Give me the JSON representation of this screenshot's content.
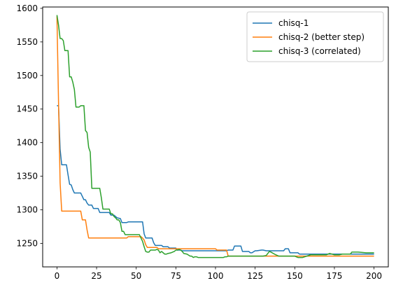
{
  "chart_data": {
    "type": "line",
    "xlim": [
      -9,
      209
    ],
    "ylim": [
      1215,
      1602
    ],
    "xticks": [
      0,
      25,
      50,
      75,
      100,
      125,
      150,
      175,
      200
    ],
    "yticks": [
      1250,
      1300,
      1350,
      1400,
      1450,
      1500,
      1550,
      1600
    ],
    "grid": false,
    "legend_position": "top-right",
    "series": [
      {
        "name": "chisq-1",
        "color": "#1f77b4",
        "x": [
          0,
          1,
          2,
          3,
          6,
          7,
          8,
          9,
          10,
          11,
          15,
          16,
          17,
          18,
          19,
          20,
          22,
          23,
          26,
          27,
          33,
          34,
          36,
          38,
          40,
          41,
          44,
          45,
          54,
          55,
          56,
          57,
          59,
          60,
          61,
          62,
          66,
          67,
          70,
          71,
          75,
          76,
          78,
          79,
          80,
          107,
          108,
          111,
          112,
          116,
          117,
          121,
          122,
          123,
          125,
          126,
          129,
          130,
          132,
          133,
          143,
          144,
          146,
          147,
          152,
          153,
          200
        ],
        "y": [
          1455,
          1455,
          1390,
          1367,
          1367,
          1352,
          1338,
          1337,
          1330,
          1325,
          1325,
          1320,
          1315,
          1315,
          1310,
          1307,
          1307,
          1302,
          1302,
          1296,
          1296,
          1292,
          1292,
          1288,
          1287,
          1281,
          1281,
          1282,
          1282,
          1264,
          1258,
          1258,
          1258,
          1258,
          1251,
          1247,
          1247,
          1245,
          1245,
          1243,
          1243,
          1240,
          1240,
          1239,
          1239,
          1239,
          1240,
          1240,
          1246,
          1246,
          1238,
          1238,
          1236,
          1236,
          1239,
          1239,
          1240,
          1240,
          1239,
          1239,
          1239,
          1242,
          1242,
          1236,
          1236,
          1234,
          1234
        ]
      },
      {
        "name": "chisq-2 (better step)",
        "color": "#ff7f0e",
        "x": [
          0,
          1,
          2,
          3,
          15,
          16,
          18,
          19,
          20,
          21,
          44,
          45,
          53,
          54,
          55,
          56,
          57,
          58,
          59,
          63,
          64,
          100,
          101,
          107,
          108,
          170,
          200
        ],
        "y": [
          1588,
          1460,
          1340,
          1298,
          1298,
          1285,
          1285,
          1270,
          1258,
          1258,
          1258,
          1260,
          1260,
          1258,
          1255,
          1248,
          1244,
          1244,
          1244,
          1244,
          1242,
          1242,
          1240,
          1240,
          1231,
          1231,
          1231
        ]
      },
      {
        "name": "chisq-3 (correlated)",
        "color": "#2ca02c",
        "x": [
          0,
          1,
          2,
          3,
          4,
          5,
          6,
          7,
          8,
          9,
          10,
          11,
          12,
          13,
          14,
          15,
          16,
          17,
          18,
          19,
          20,
          21,
          22,
          23,
          24,
          26,
          27,
          28,
          29,
          30,
          31,
          33,
          34,
          35,
          36,
          37,
          38,
          39,
          40,
          41,
          42,
          43,
          44,
          45,
          46,
          48,
          50,
          52,
          53,
          54,
          55,
          56,
          57,
          58,
          59,
          60,
          62,
          63,
          64,
          65,
          66,
          67,
          68,
          69,
          70,
          72,
          74,
          75,
          76,
          77,
          78,
          79,
          80,
          82,
          84,
          85,
          86,
          87,
          88,
          89,
          90,
          92,
          95,
          100,
          105,
          106,
          107,
          108,
          110,
          114,
          120,
          125,
          130,
          132,
          134,
          135,
          138,
          140,
          145,
          150,
          152,
          155,
          160,
          163,
          170,
          172,
          175,
          178,
          180,
          185,
          186,
          190,
          195,
          200
        ],
        "y": [
          1590,
          1575,
          1555,
          1555,
          1552,
          1537,
          1537,
          1537,
          1498,
          1498,
          1490,
          1479,
          1453,
          1453,
          1453,
          1455,
          1455,
          1455,
          1418,
          1415,
          1393,
          1386,
          1332,
          1332,
          1332,
          1332,
          1332,
          1318,
          1301,
          1301,
          1301,
          1301,
          1294,
          1294,
          1290,
          1288,
          1285,
          1285,
          1281,
          1268,
          1268,
          1263,
          1263,
          1263,
          1263,
          1263,
          1263,
          1263,
          1258,
          1253,
          1245,
          1238,
          1237,
          1237,
          1240,
          1240,
          1240,
          1241,
          1240,
          1236,
          1238,
          1236,
          1234,
          1234,
          1235,
          1236,
          1238,
          1240,
          1240,
          1241,
          1240,
          1238,
          1235,
          1234,
          1231,
          1231,
          1229,
          1230,
          1230,
          1229,
          1229,
          1229,
          1229,
          1229,
          1229,
          1230,
          1230,
          1231,
          1231,
          1231,
          1231,
          1231,
          1231,
          1232,
          1238,
          1237,
          1233,
          1231,
          1231,
          1231,
          1229,
          1229,
          1233,
          1233,
          1233,
          1235,
          1233,
          1233,
          1234,
          1234,
          1237,
          1237,
          1236,
          1236
        ]
      }
    ]
  }
}
